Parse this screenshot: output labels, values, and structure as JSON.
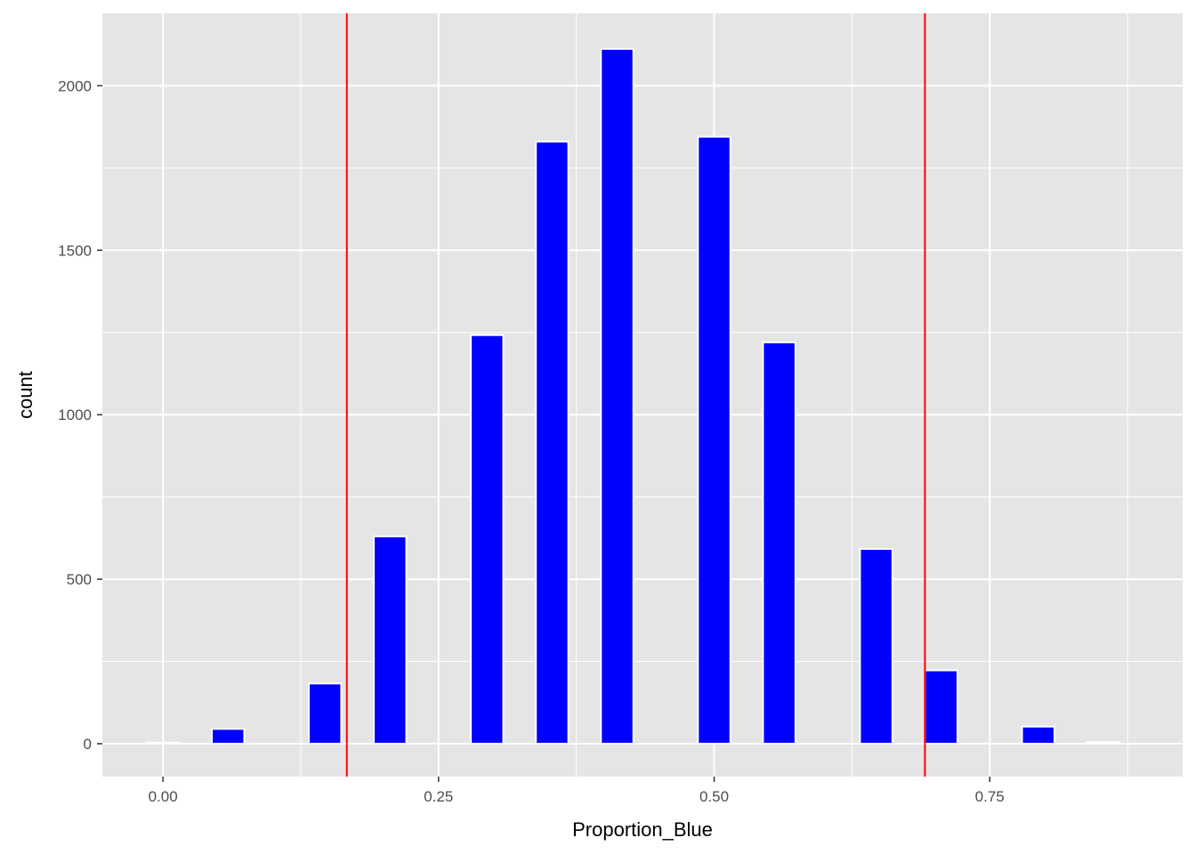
{
  "chart_data": {
    "type": "bar",
    "subtype": "histogram",
    "xlabel": "Proportion_Blue",
    "ylabel": "count",
    "xlim": [
      -0.055,
      0.925
    ],
    "ylim": [
      -100,
      2220
    ],
    "x_ticks": [
      0.0,
      0.25,
      0.5,
      0.75
    ],
    "x_tick_labels": [
      "0.00",
      "0.25",
      "0.50",
      "0.75"
    ],
    "y_ticks": [
      0,
      500,
      1000,
      1500,
      2000
    ],
    "y_tick_labels": [
      "0",
      "500",
      "1000",
      "1500",
      "2000"
    ],
    "bin_width": 0.0294,
    "bars": [
      {
        "x": 0.0,
        "count": 3
      },
      {
        "x": 0.059,
        "count": 45
      },
      {
        "x": 0.147,
        "count": 183
      },
      {
        "x": 0.206,
        "count": 630
      },
      {
        "x": 0.294,
        "count": 1242
      },
      {
        "x": 0.353,
        "count": 1830
      },
      {
        "x": 0.412,
        "count": 2112
      },
      {
        "x": 0.5,
        "count": 1845
      },
      {
        "x": 0.559,
        "count": 1220
      },
      {
        "x": 0.647,
        "count": 592
      },
      {
        "x": 0.706,
        "count": 223
      },
      {
        "x": 0.794,
        "count": 52
      },
      {
        "x": 0.853,
        "count": 5
      }
    ],
    "vlines": [
      0.1668,
      0.6912
    ],
    "colors": {
      "panel": "#e5e5e5",
      "grid_major": "#ffffff",
      "bar_fill": "#0000ff",
      "bar_outline": "#ffffff",
      "vline": "#ff0000",
      "tick_label": "#4d4d4d"
    },
    "grid": true,
    "legend": "none"
  }
}
